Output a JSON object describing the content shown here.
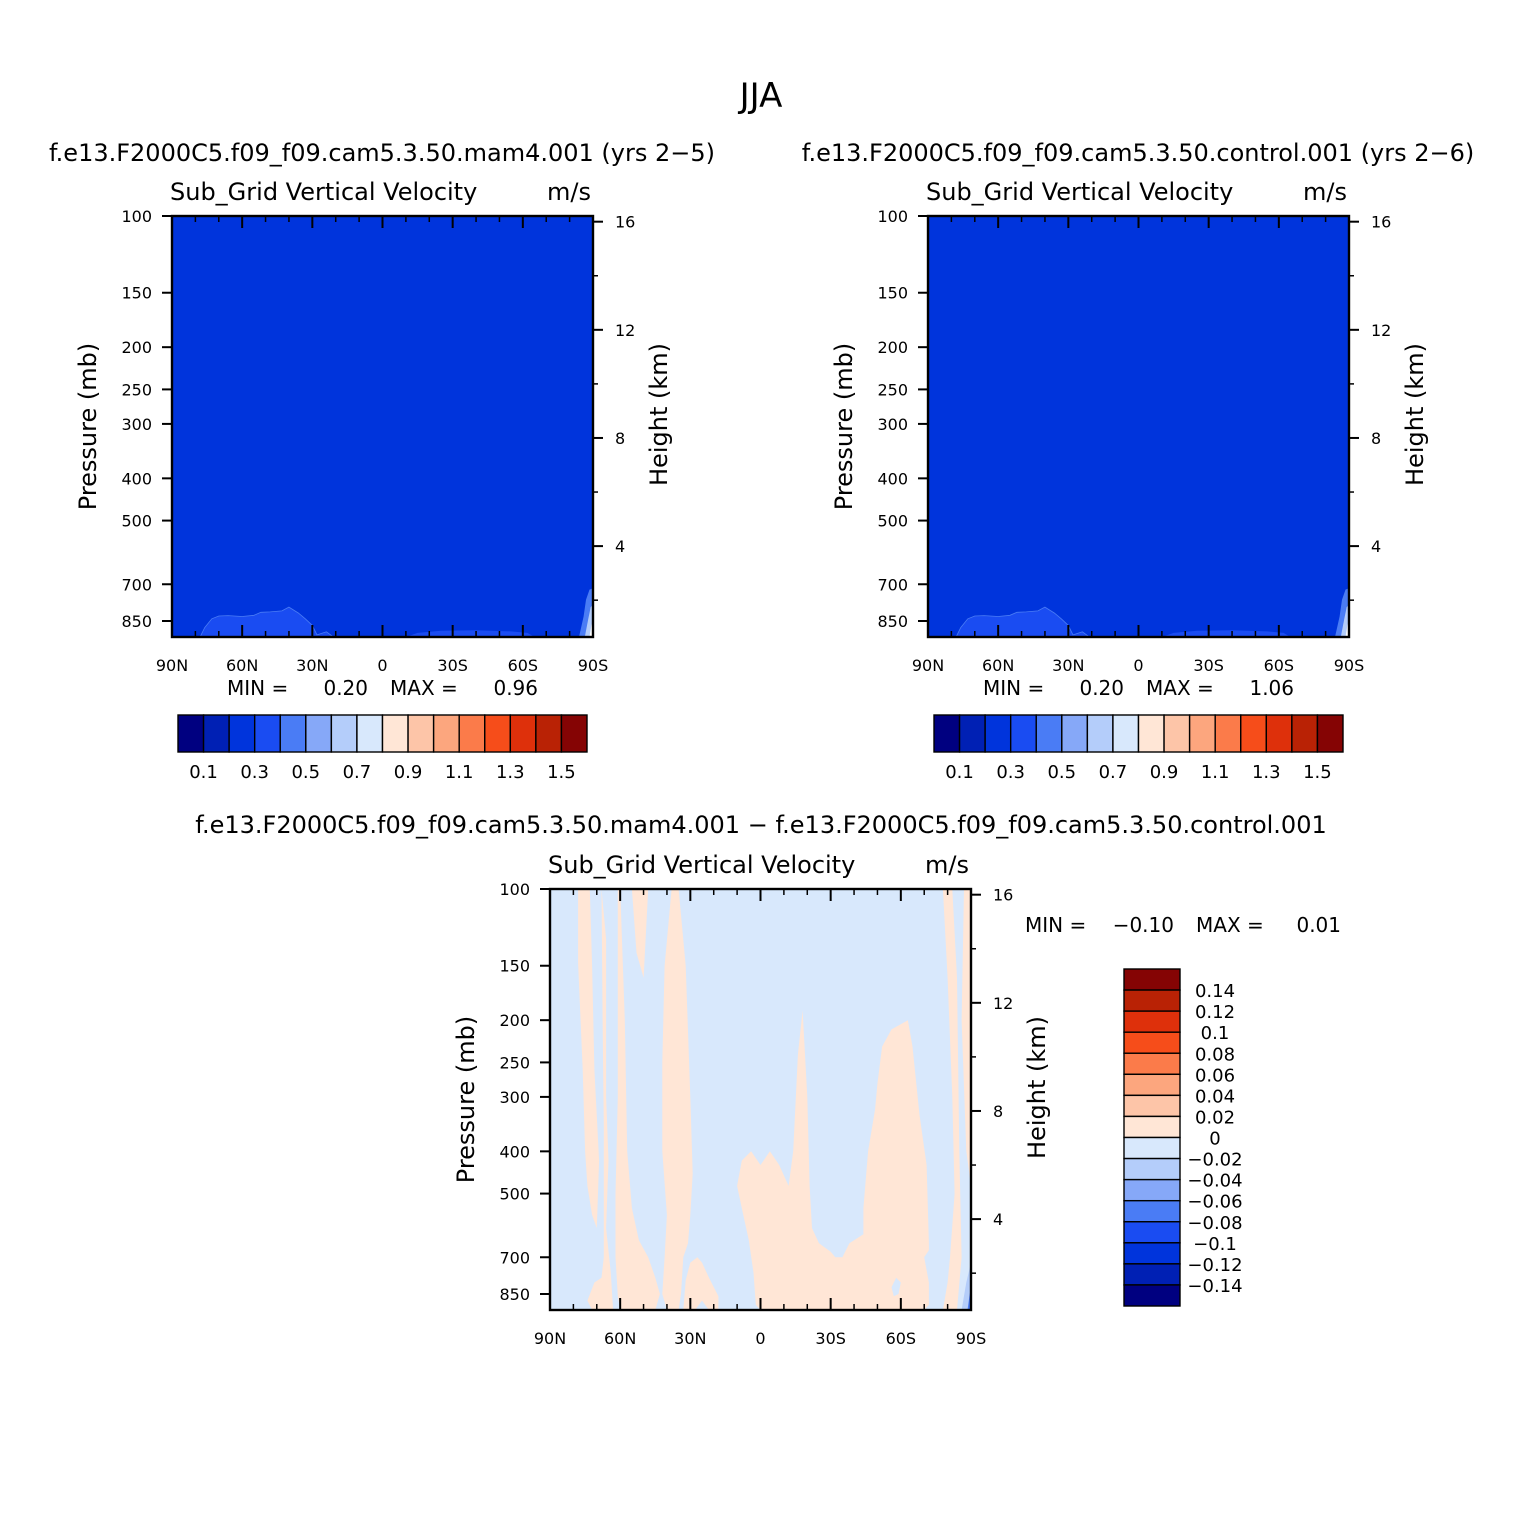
{
  "figure": {
    "title": "JJA",
    "panel_a_title": "f.e13.F2000C5.f09_f09.cam5.3.50.mam4.001 (yrs 2−5)",
    "panel_b_title": "f.e13.F2000C5.f09_f09.cam5.3.50.control.001 (yrs 2−6)",
    "panel_c_title": "f.e13.F2000C5.f09_f09.cam5.3.50.mam4.001 − f.e13.F2000C5.f09_f09.cam5.3.50.control.001"
  },
  "chart_data": [
    {
      "type": "heatmap",
      "variable": "Sub_Grid Vertical Velocity",
      "units": "m/s",
      "xlabel": "",
      "ylabel": "Pressure (mb)",
      "ylabel_right": "Height (km)",
      "x_ticks": [
        "90N",
        "60N",
        "30N",
        "0",
        "30S",
        "60S",
        "90S"
      ],
      "y_ticks": [
        "100",
        "150",
        "200",
        "250",
        "300",
        "400",
        "500",
        "700",
        "850"
      ],
      "y_right_ticks": [
        "16",
        "12",
        "8",
        "4"
      ],
      "ylim": [
        100,
        925
      ],
      "log_pressure_axis": true,
      "min_label": "MIN =",
      "min_value": "0.20",
      "max_label": "MAX =",
      "max_value": "0.96",
      "dominant_range": [
        0.2,
        0.3
      ],
      "near_surface_band": [
        0.3,
        0.4
      ],
      "colorbar": {
        "orientation": "horizontal",
        "colors": [
          "#000080",
          "#0020b4",
          "#0034dc",
          "#1a4cf2",
          "#4a7cf5",
          "#86a8f8",
          "#b4cdfa",
          "#d8e8fc",
          "#ffe6d6",
          "#fdc5a8",
          "#fca67e",
          "#fb7b4a",
          "#f64d1a",
          "#de300b",
          "#b92205",
          "#850404"
        ],
        "labels": [
          "0.1",
          "0.3",
          "0.5",
          "0.7",
          "0.9",
          "1.1",
          "1.3",
          "1.5"
        ]
      }
    },
    {
      "type": "heatmap",
      "variable": "Sub_Grid Vertical Velocity",
      "units": "m/s",
      "xlabel": "",
      "ylabel": "Pressure (mb)",
      "ylabel_right": "Height (km)",
      "x_ticks": [
        "90N",
        "60N",
        "30N",
        "0",
        "30S",
        "60S",
        "90S"
      ],
      "y_ticks": [
        "100",
        "150",
        "200",
        "250",
        "300",
        "400",
        "500",
        "700",
        "850"
      ],
      "y_right_ticks": [
        "16",
        "12",
        "8",
        "4"
      ],
      "ylim": [
        100,
        925
      ],
      "log_pressure_axis": true,
      "min_label": "MIN =",
      "min_value": "0.20",
      "max_label": "MAX =",
      "max_value": "1.06",
      "dominant_range": [
        0.2,
        0.3
      ],
      "near_surface_band": [
        0.3,
        0.4
      ],
      "colorbar": {
        "orientation": "horizontal",
        "colors": [
          "#000080",
          "#0020b4",
          "#0034dc",
          "#1a4cf2",
          "#4a7cf5",
          "#86a8f8",
          "#b4cdfa",
          "#d8e8fc",
          "#ffe6d6",
          "#fdc5a8",
          "#fca67e",
          "#fb7b4a",
          "#f64d1a",
          "#de300b",
          "#b92205",
          "#850404"
        ],
        "labels": [
          "0.1",
          "0.3",
          "0.5",
          "0.7",
          "0.9",
          "1.1",
          "1.3",
          "1.5"
        ]
      }
    },
    {
      "type": "heatmap",
      "variable": "Sub_Grid Vertical Velocity",
      "units": "m/s",
      "xlabel": "",
      "ylabel": "Pressure (mb)",
      "ylabel_right": "Height (km)",
      "x_ticks": [
        "90N",
        "60N",
        "30N",
        "0",
        "30S",
        "60S",
        "90S"
      ],
      "y_ticks": [
        "100",
        "150",
        "200",
        "250",
        "300",
        "400",
        "500",
        "700",
        "850"
      ],
      "y_right_ticks": [
        "16",
        "12",
        "8",
        "4"
      ],
      "ylim": [
        100,
        925
      ],
      "log_pressure_axis": true,
      "min_label": "MIN =",
      "min_value": "−0.10",
      "max_label": "MAX =",
      "max_value": "0.01",
      "positive_bins_0_to_0_02_lat_ranges": [
        [
          -78,
          -66
        ],
        [
          -55,
          -43
        ],
        [
          -33,
          -25
        ],
        [
          10,
          40
        ],
        [
          62,
          78
        ]
      ],
      "colorbar": {
        "orientation": "vertical",
        "colors": [
          "#000080",
          "#0020b4",
          "#0034dc",
          "#1a4cf2",
          "#4a7cf5",
          "#86a8f8",
          "#b4cdfa",
          "#d8e8fc",
          "#ffe6d6",
          "#fdc5a8",
          "#fca67e",
          "#fb7b4a",
          "#f64d1a",
          "#de300b",
          "#b92205",
          "#850404"
        ],
        "labels": [
          "−0.14",
          "−0.12",
          "−0.1",
          "−0.08",
          "−0.06",
          "−0.04",
          "−0.02",
          "0",
          "0.02",
          "0.04",
          "0.06",
          "0.08",
          "0.1",
          "0.12",
          "0.14"
        ]
      }
    }
  ]
}
